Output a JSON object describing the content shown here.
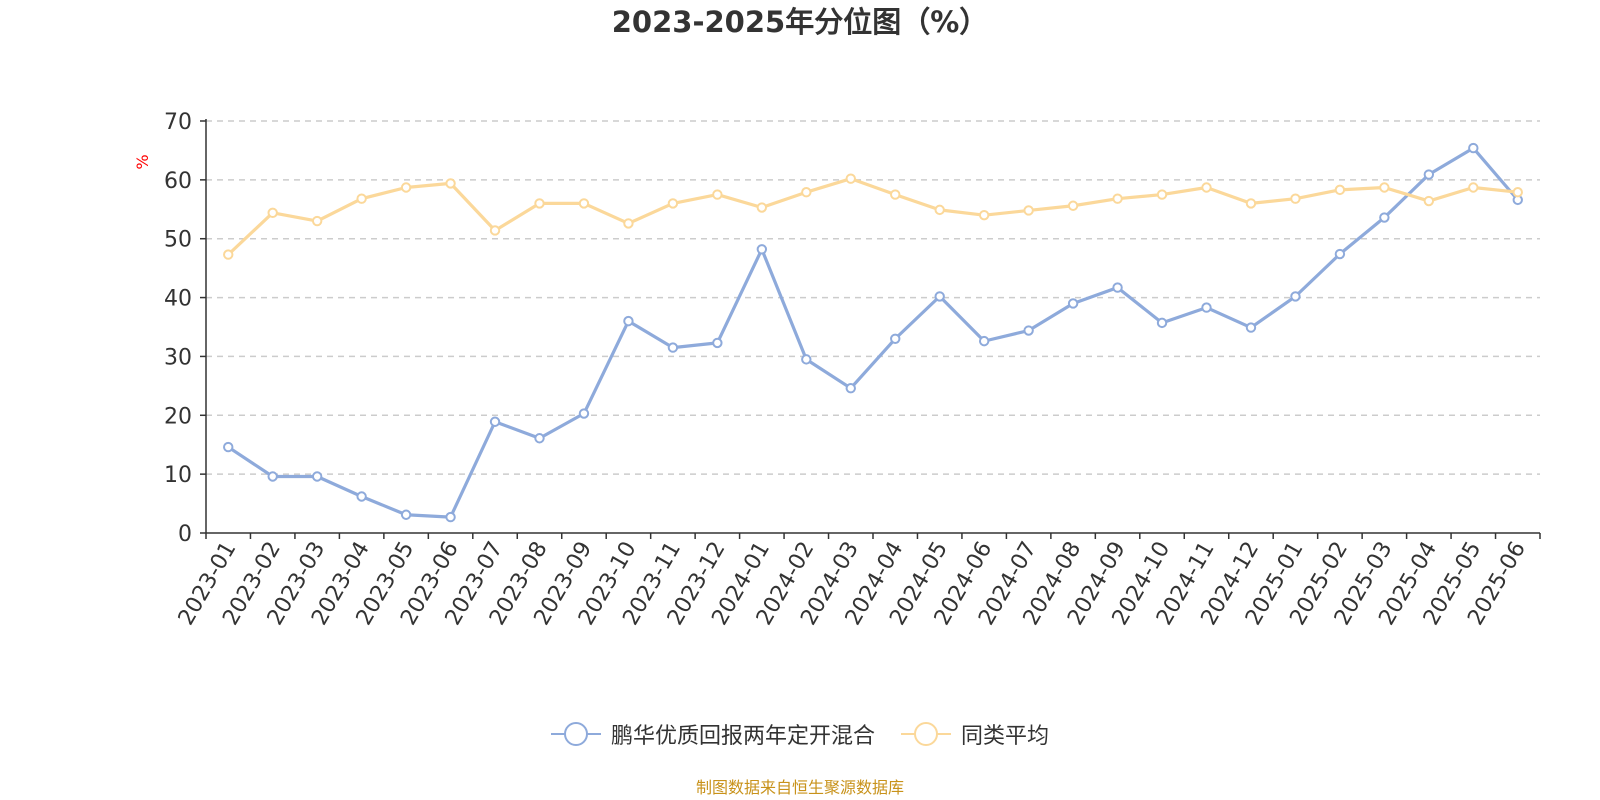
{
  "chart_data": {
    "type": "line",
    "title": "2023-2025年分位图（%）",
    "y_unit_label": "%",
    "ylim": [
      0,
      70
    ],
    "yticks": [
      0,
      10,
      20,
      30,
      40,
      50,
      60,
      70
    ],
    "grid": true,
    "legend_position": "bottom",
    "categories": [
      "2023-01",
      "2023-02",
      "2023-03",
      "2023-04",
      "2023-05",
      "2023-06",
      "2023-07",
      "2023-08",
      "2023-09",
      "2023-10",
      "2023-11",
      "2023-12",
      "2024-01",
      "2024-02",
      "2024-03",
      "2024-04",
      "2024-05",
      "2024-06",
      "2024-07",
      "2024-08",
      "2024-09",
      "2024-10",
      "2024-11",
      "2024-12",
      "2025-01",
      "2025-02",
      "2025-03",
      "2025-04",
      "2025-05",
      "2025-06"
    ],
    "series": [
      {
        "name": "鹏华优质回报两年定开混合",
        "color": "#8eaadb",
        "values": [
          14.6,
          9.6,
          9.6,
          6.2,
          3.1,
          2.7,
          18.9,
          16.1,
          20.3,
          36.0,
          31.5,
          32.3,
          48.2,
          29.5,
          24.6,
          33.0,
          40.2,
          32.6,
          34.4,
          39.0,
          41.7,
          35.7,
          38.3,
          34.9,
          40.2,
          47.4,
          53.6,
          60.9,
          65.4,
          56.6
        ]
      },
      {
        "name": "同类平均",
        "color": "#fbd89a",
        "values": [
          47.3,
          54.4,
          53.0,
          56.8,
          58.7,
          59.4,
          51.4,
          56.0,
          56.0,
          52.6,
          56.0,
          57.5,
          55.3,
          57.9,
          60.2,
          57.5,
          54.9,
          54.0,
          54.8,
          55.6,
          56.8,
          57.5,
          58.7,
          56.0,
          56.8,
          58.3,
          58.7,
          56.4,
          58.7,
          57.9
        ]
      }
    ]
  },
  "source_note": "制图数据来自恒生聚源数据库"
}
